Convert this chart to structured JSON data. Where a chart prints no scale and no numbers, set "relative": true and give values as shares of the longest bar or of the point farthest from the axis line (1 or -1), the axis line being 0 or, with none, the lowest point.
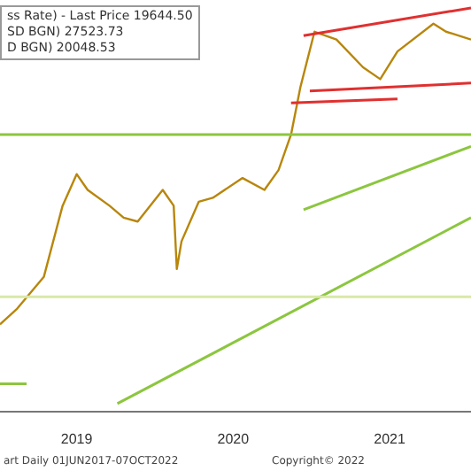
{
  "chart_data": {
    "type": "line",
    "relative": true,
    "grid": false,
    "legend": false,
    "marker": "none",
    "tick_labels": "x",
    "xlim": [
      2018.51,
      2021.52
    ],
    "xticks": [
      2019,
      2020,
      2021
    ],
    "annotations": [
      "ss Rate) - Last Price 19644.50",
      "SD BGN) 27523.73",
      "D BGN) 20048.53",
      "art  Daily 01JUN2017-07OCT2022",
      "Copyright© 2022"
    ],
    "series": [
      {
        "color": "#d8e8a8",
        "x": [
          2018.51,
          2021.52
        ],
        "values": [
          0.27,
          0.27
        ]
      },
      {
        "color": "#8cc63f",
        "x": [
          2018.51,
          2021.52
        ],
        "values": [
          0.68,
          0.68
        ]
      },
      {
        "color": "#8cc63f",
        "x": [
          2020.45,
          2021.52
        ],
        "values": [
          0.49,
          0.65
        ]
      },
      {
        "color": "#8cc63f",
        "x": [
          2019.26,
          2021.52
        ],
        "values": [
          0.0,
          0.47
        ]
      },
      {
        "color": "#8cc63f",
        "x": [
          2018.51,
          2018.68
        ],
        "values": [
          0.05,
          0.05
        ]
      },
      {
        "color": "#e03030",
        "x": [
          2020.45,
          2021.52
        ],
        "values": [
          0.93,
          1.0
        ]
      },
      {
        "color": "#e03030",
        "x": [
          2020.49,
          2021.52
        ],
        "values": [
          0.79,
          0.81
        ]
      },
      {
        "color": "#e03030",
        "x": [
          2020.37,
          2021.05
        ],
        "values": [
          0.76,
          0.77
        ]
      },
      {
        "color": "#b8860b",
        "x": [
          2018.51,
          2018.62,
          2018.79,
          2018.91,
          2019.0,
          2019.07,
          2019.21,
          2019.3,
          2019.39,
          2019.55,
          2019.62,
          2019.64,
          2019.67,
          2019.78,
          2019.87,
          2020.06,
          2020.2,
          2020.29,
          2020.37,
          2020.43,
          2020.52,
          2020.66,
          2020.83,
          2020.94,
          2021.05,
          2021.28,
          2021.36,
          2021.52
        ],
        "values": [
          0.2,
          0.24,
          0.32,
          0.5,
          0.58,
          0.54,
          0.5,
          0.47,
          0.46,
          0.54,
          0.5,
          0.34,
          0.41,
          0.51,
          0.52,
          0.57,
          0.54,
          0.59,
          0.68,
          0.8,
          0.94,
          0.92,
          0.85,
          0.82,
          0.89,
          0.96,
          0.94,
          0.92
        ]
      }
    ]
  }
}
